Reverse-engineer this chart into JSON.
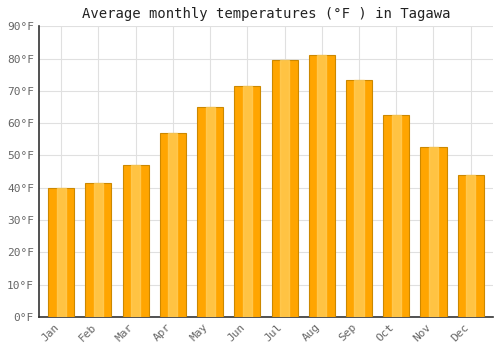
{
  "title": "Average monthly temperatures (°F ) in Tagawa",
  "months": [
    "Jan",
    "Feb",
    "Mar",
    "Apr",
    "May",
    "Jun",
    "Jul",
    "Aug",
    "Sep",
    "Oct",
    "Nov",
    "Dec"
  ],
  "values": [
    40,
    41.5,
    47,
    57,
    65,
    71.5,
    79.5,
    81,
    73.5,
    62.5,
    52.5,
    44
  ],
  "bar_color": "#FFA500",
  "bar_color_light": "#FFD060",
  "ylim": [
    0,
    90
  ],
  "yticks": [
    0,
    10,
    20,
    30,
    40,
    50,
    60,
    70,
    80,
    90
  ],
  "ytick_labels": [
    "0°F",
    "10°F",
    "20°F",
    "30°F",
    "40°F",
    "50°F",
    "60°F",
    "70°F",
    "80°F",
    "90°F"
  ],
  "background_color": "#ffffff",
  "grid_color": "#e0e0e0",
  "bar_edge_color": "#cc8800",
  "title_fontsize": 10,
  "tick_fontsize": 8,
  "tick_color": "#666666"
}
